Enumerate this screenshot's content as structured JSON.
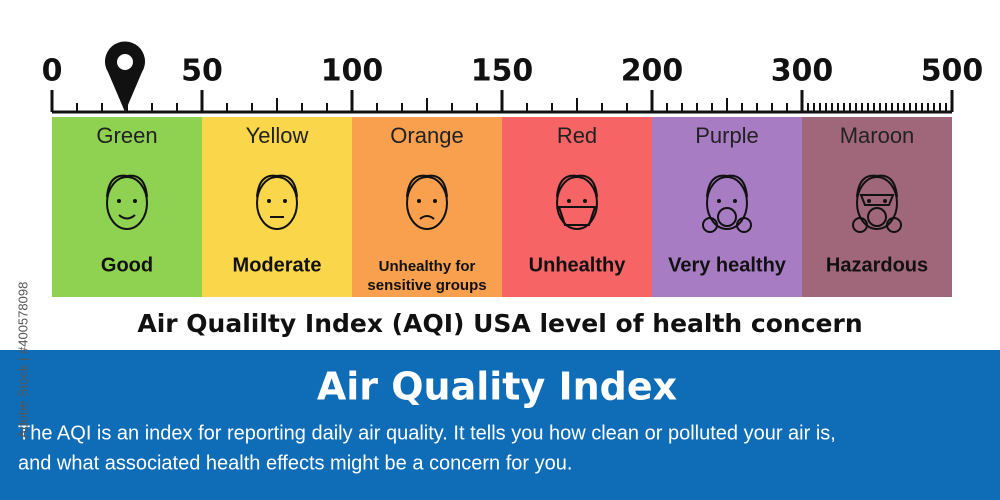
{
  "scale": {
    "ticks": [
      0,
      50,
      100,
      150,
      200,
      300,
      500
    ]
  },
  "bands": [
    {
      "color_name": "Green",
      "label": "Good",
      "color": "#8fd150"
    },
    {
      "color_name": "Yellow",
      "label": "Moderate",
      "color": "#fad74a"
    },
    {
      "color_name": "Orange",
      "label": [
        "Unhealthy for",
        "sensitive groups"
      ],
      "color": "#f9a04f"
    },
    {
      "color_name": "Red",
      "label": "Unhealthy",
      "color": "#f66466"
    },
    {
      "color_name": "Purple",
      "label": "Very healthy",
      "color": "#a87cc3"
    },
    {
      "color_name": "Maroon",
      "label": "Hazardous",
      "color": "#a0677a"
    }
  ],
  "caption": "Air Qualilty Index (AQI) USA level of health concern",
  "banner": {
    "title": "Air Quality Index",
    "body": [
      "The AQI is an index for reporting daily air quality. It tells  you how clean or polluted your air is,",
      "and what associated health effects might be a concern for you."
    ],
    "color": "#0f6db8"
  },
  "watermark": "Adobe Stock | #400578098"
}
